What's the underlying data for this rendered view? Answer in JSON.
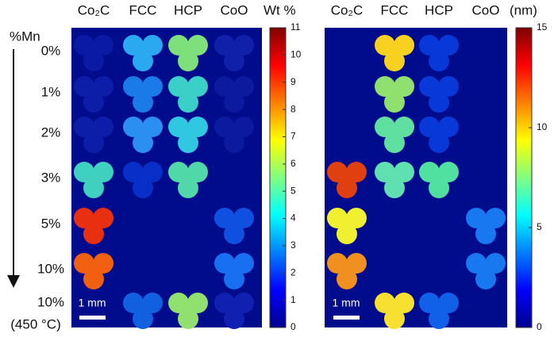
{
  "row_axis_label": "%Mn",
  "rows": [
    "0%",
    "1%",
    "2%",
    "3%",
    "5%",
    "10%",
    "10%"
  ],
  "row_note": "(450 °C)",
  "panels": [
    {
      "columns": [
        "Co₂C",
        "FCC",
        "HCP",
        "CoO"
      ],
      "scale_bar": "1 mm",
      "colorbar": {
        "label": "Wt %",
        "lim": [
          0,
          11
        ],
        "ticks": [
          0,
          1,
          2,
          3,
          4,
          5,
          6,
          7,
          8,
          9,
          10,
          11
        ]
      }
    },
    {
      "columns": [
        "Co₂C",
        "FCC",
        "HCP",
        "CoO"
      ],
      "scale_bar": "1 mm",
      "colorbar": {
        "label": "(nm)",
        "lim": [
          0,
          15
        ],
        "ticks": [
          0,
          5,
          10,
          15
        ]
      }
    }
  ]
}
